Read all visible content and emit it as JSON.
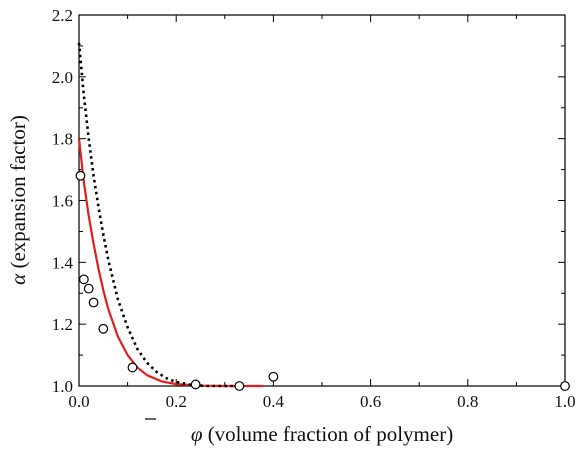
{
  "chart_data": {
    "type": "scatter",
    "title": "",
    "xlabel": {
      "symbol": "φ",
      "text": " (volume fraction of polymer)"
    },
    "ylabel": {
      "symbol": "α",
      "text": " (expansion factor)"
    },
    "xlim": [
      0.0,
      1.0
    ],
    "ylim": [
      1.0,
      2.2
    ],
    "x_ticks": [
      "0.0",
      "0.2",
      "0.4",
      "0.6",
      "0.8",
      "1.0"
    ],
    "y_ticks": [
      "1.0",
      "1.2",
      "1.4",
      "1.6",
      "1.8",
      "2.0",
      "2.2"
    ],
    "x_tick_values": [
      0.0,
      0.2,
      0.4,
      0.6,
      0.8,
      1.0
    ],
    "y_tick_values": [
      1.0,
      1.2,
      1.4,
      1.6,
      1.8,
      2.0,
      2.2
    ],
    "grid": false,
    "series": [
      {
        "kind": "markers",
        "marker": "open-circle",
        "color": "#000000",
        "points": [
          {
            "x": 0.003,
            "y": 1.68
          },
          {
            "x": 0.01,
            "y": 1.345
          },
          {
            "x": 0.02,
            "y": 1.315
          },
          {
            "x": 0.03,
            "y": 1.27
          },
          {
            "x": 0.05,
            "y": 1.185
          },
          {
            "x": 0.11,
            "y": 1.06
          },
          {
            "x": 0.24,
            "y": 1.005
          },
          {
            "x": 0.33,
            "y": 1.0
          },
          {
            "x": 0.4,
            "y": 1.03
          },
          {
            "x": 1.0,
            "y": 1.0
          }
        ]
      },
      {
        "kind": "line",
        "style": "solid",
        "color": "#e02020",
        "points": [
          {
            "x": 0.0,
            "y": 1.8
          },
          {
            "x": 0.01,
            "y": 1.66
          },
          {
            "x": 0.02,
            "y": 1.55
          },
          {
            "x": 0.03,
            "y": 1.46
          },
          {
            "x": 0.04,
            "y": 1.38
          },
          {
            "x": 0.05,
            "y": 1.31
          },
          {
            "x": 0.06,
            "y": 1.25
          },
          {
            "x": 0.08,
            "y": 1.16
          },
          {
            "x": 0.1,
            "y": 1.1
          },
          {
            "x": 0.12,
            "y": 1.06
          },
          {
            "x": 0.14,
            "y": 1.035
          },
          {
            "x": 0.17,
            "y": 1.015
          },
          {
            "x": 0.2,
            "y": 1.006
          },
          {
            "x": 0.25,
            "y": 1.001
          },
          {
            "x": 0.3,
            "y": 1.0
          },
          {
            "x": 0.35,
            "y": 1.0
          },
          {
            "x": 0.38,
            "y": 1.0
          }
        ]
      },
      {
        "kind": "line",
        "style": "dotted",
        "color": "#000000",
        "points": [
          {
            "x": 0.0,
            "y": 2.11
          },
          {
            "x": 0.01,
            "y": 1.94
          },
          {
            "x": 0.02,
            "y": 1.8
          },
          {
            "x": 0.03,
            "y": 1.68
          },
          {
            "x": 0.04,
            "y": 1.58
          },
          {
            "x": 0.05,
            "y": 1.49
          },
          {
            "x": 0.06,
            "y": 1.41
          },
          {
            "x": 0.08,
            "y": 1.28
          },
          {
            "x": 0.1,
            "y": 1.19
          },
          {
            "x": 0.12,
            "y": 1.12
          },
          {
            "x": 0.14,
            "y": 1.075
          },
          {
            "x": 0.16,
            "y": 1.045
          },
          {
            "x": 0.18,
            "y": 1.025
          },
          {
            "x": 0.2,
            "y": 1.013
          },
          {
            "x": 0.23,
            "y": 1.004
          },
          {
            "x": 0.26,
            "y": 1.0
          },
          {
            "x": 0.3,
            "y": 1.0
          },
          {
            "x": 0.33,
            "y": 1.0
          }
        ]
      }
    ]
  }
}
